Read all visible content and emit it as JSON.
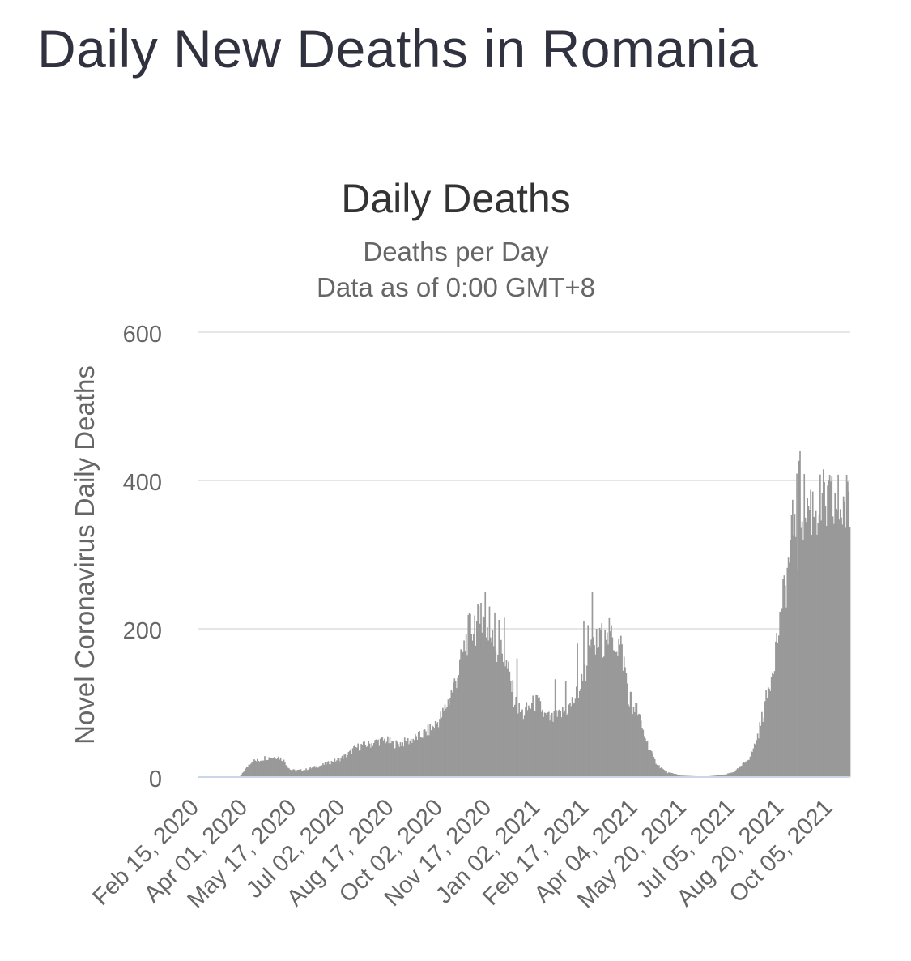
{
  "page": {
    "title": "Daily New Deaths in Romania"
  },
  "chart_data": {
    "type": "bar",
    "title": "Daily Deaths",
    "subtitle_lines": [
      "Deaths per Day",
      "Data as of 0:00 GMT+8"
    ],
    "ylabel": "Novel Coronavirus Daily Deaths",
    "xlabel": "",
    "ylim": [
      0,
      600
    ],
    "yticks": [
      0,
      200,
      400,
      600
    ],
    "start_date": "Feb 15, 2020",
    "num_days": 615,
    "x_tick_labels": [
      "Feb 15, 2020",
      "Apr 01, 2020",
      "May 17, 2020",
      "Jul 02, 2020",
      "Aug 17, 2020",
      "Oct 02, 2020",
      "Nov 17, 2020",
      "Jan 02, 2021",
      "Feb 17, 2021",
      "Apr 04, 2021",
      "May 20, 2021",
      "Jul 05, 2021",
      "Aug 20, 2021",
      "Oct 05, 2021"
    ],
    "x_tick_day_index": [
      0,
      46,
      92,
      138,
      184,
      230,
      276,
      322,
      368,
      414,
      460,
      506,
      552,
      598
    ],
    "series": [
      {
        "name": "Daily Deaths",
        "color": "#999999",
        "anchors": [
          [
            0,
            0
          ],
          [
            38,
            0
          ],
          [
            40,
            3
          ],
          [
            46,
            15
          ],
          [
            50,
            22
          ],
          [
            56,
            22
          ],
          [
            62,
            26
          ],
          [
            68,
            26
          ],
          [
            74,
            28
          ],
          [
            80,
            22
          ],
          [
            86,
            10
          ],
          [
            92,
            9
          ],
          [
            100,
            10
          ],
          [
            108,
            13
          ],
          [
            116,
            16
          ],
          [
            124,
            20
          ],
          [
            132,
            24
          ],
          [
            140,
            30
          ],
          [
            146,
            38
          ],
          [
            152,
            42
          ],
          [
            160,
            44
          ],
          [
            168,
            48
          ],
          [
            176,
            50
          ],
          [
            184,
            44
          ],
          [
            192,
            46
          ],
          [
            200,
            50
          ],
          [
            208,
            55
          ],
          [
            216,
            62
          ],
          [
            224,
            72
          ],
          [
            230,
            85
          ],
          [
            236,
            105
          ],
          [
            242,
            130
          ],
          [
            248,
            158
          ],
          [
            252,
            185
          ],
          [
            256,
            200
          ],
          [
            262,
            205
          ],
          [
            268,
            210
          ],
          [
            272,
            200
          ],
          [
            276,
            185
          ],
          [
            280,
            175
          ],
          [
            284,
            170
          ],
          [
            288,
            160
          ],
          [
            292,
            140
          ],
          [
            296,
            115
          ],
          [
            300,
            92
          ],
          [
            306,
            85
          ],
          [
            312,
            95
          ],
          [
            318,
            100
          ],
          [
            322,
            95
          ],
          [
            326,
            82
          ],
          [
            332,
            78
          ],
          [
            338,
            80
          ],
          [
            344,
            88
          ],
          [
            350,
            95
          ],
          [
            356,
            110
          ],
          [
            362,
            130
          ],
          [
            368,
            160
          ],
          [
            374,
            175
          ],
          [
            380,
            185
          ],
          [
            386,
            190
          ],
          [
            392,
            185
          ],
          [
            398,
            175
          ],
          [
            402,
            145
          ],
          [
            406,
            110
          ],
          [
            410,
            98
          ],
          [
            414,
            88
          ],
          [
            418,
            65
          ],
          [
            422,
            50
          ],
          [
            426,
            35
          ],
          [
            430,
            22
          ],
          [
            434,
            15
          ],
          [
            438,
            10
          ],
          [
            442,
            6
          ],
          [
            446,
            5
          ],
          [
            450,
            4
          ],
          [
            454,
            2
          ],
          [
            470,
            1
          ],
          [
            480,
            1
          ],
          [
            496,
            3
          ],
          [
            506,
            8
          ],
          [
            514,
            18
          ],
          [
            520,
            28
          ],
          [
            524,
            42
          ],
          [
            528,
            60
          ],
          [
            532,
            85
          ],
          [
            536,
            110
          ],
          [
            540,
            140
          ],
          [
            544,
            175
          ],
          [
            548,
            205
          ],
          [
            552,
            245
          ],
          [
            556,
            285
          ],
          [
            560,
            330
          ],
          [
            562,
            360
          ],
          [
            564,
            370
          ],
          [
            566,
            375
          ],
          [
            568,
            372
          ],
          [
            570,
            365
          ]
        ],
        "spikes": [
          [
            256,
            220
          ],
          [
            260,
            218
          ],
          [
            266,
            235
          ],
          [
            270,
            250
          ],
          [
            274,
            230
          ],
          [
            279,
            222
          ],
          [
            283,
            212
          ],
          [
            288,
            215
          ],
          [
            300,
            160
          ],
          [
            336,
            132
          ],
          [
            346,
            130
          ],
          [
            357,
            180
          ],
          [
            363,
            210
          ],
          [
            367,
            205
          ],
          [
            371,
            250
          ],
          [
            375,
            200
          ],
          [
            379,
            198
          ],
          [
            383,
            198
          ],
          [
            384,
            190
          ],
          [
            384,
            185
          ],
          [
            385,
            195
          ],
          [
            405,
            98
          ],
          [
            409,
            85
          ],
          [
            567,
            440
          ],
          [
            562,
            355
          ],
          [
            565,
            280
          ]
        ]
      }
    ]
  }
}
